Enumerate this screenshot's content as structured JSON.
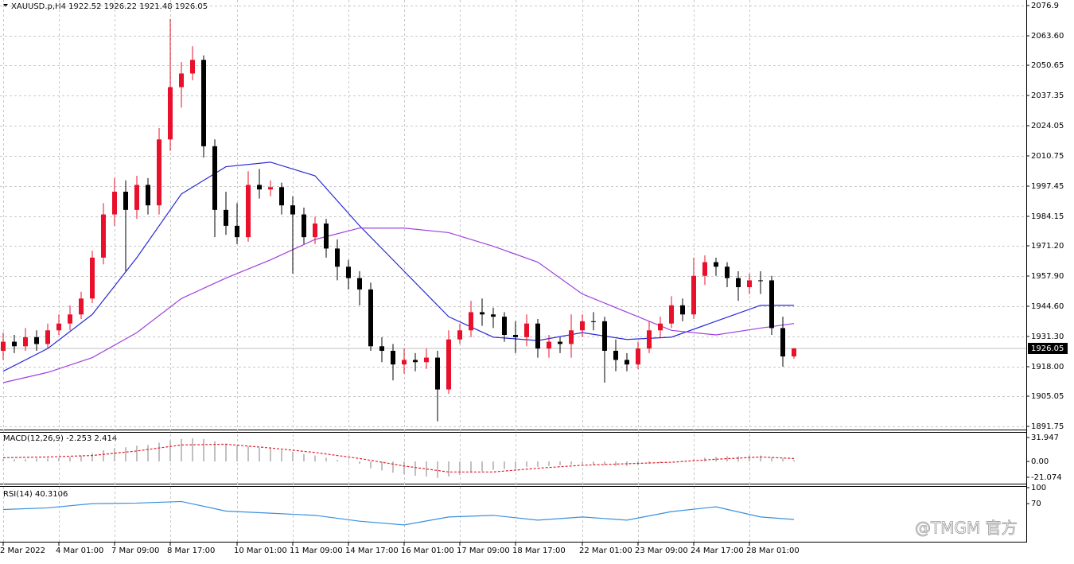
{
  "chart_data": [
    {
      "type": "candlestick",
      "title": "XAUUSD.p,H4  1922.52 1926.22 1921.48 1926.05",
      "categories": [
        "2 Mar 2022",
        null,
        null,
        null,
        null,
        "4 Mar 01:00",
        null,
        null,
        null,
        null,
        "7 Mar 09:00",
        null,
        null,
        null,
        null,
        "8 Mar 17:00",
        null,
        null,
        null,
        null,
        null,
        "10 Mar 01:00",
        null,
        null,
        null,
        null,
        "11 Mar 09:00",
        null,
        null,
        null,
        null,
        "14 Mar 17:00",
        null,
        null,
        null,
        null,
        "16 Mar 01:00",
        null,
        null,
        null,
        null,
        "17 Mar 09:00",
        null,
        null,
        null,
        null,
        "18 Mar 17:00",
        null,
        null,
        null,
        null,
        null,
        "22 Mar 01:00",
        null,
        null,
        null,
        null,
        "23 Mar 09:00",
        null,
        null,
        null,
        null,
        "24 Mar 17:00",
        null,
        null,
        null,
        null,
        "28 Mar 01:00",
        null,
        null,
        null,
        null
      ],
      "open": [
        1925,
        1929,
        1927,
        1931,
        1928,
        1934,
        1937,
        1941,
        1948,
        1966,
        1985,
        1995,
        1987,
        1998,
        1989,
        2018,
        2041,
        2047,
        2053,
        2015,
        1987,
        1980,
        1975,
        1998,
        1996,
        1997,
        1989,
        1985,
        1975,
        1981,
        1970,
        1962,
        1957,
        1952,
        1927,
        1925,
        1919,
        1921,
        1920,
        1922,
        1908,
        1930,
        1934,
        1942,
        1941,
        1940,
        1932,
        1931,
        1937,
        1926,
        1929,
        1928,
        1934,
        1938,
        1938,
        1925,
        1921,
        1919,
        1926,
        1934,
        1937,
        1945,
        1941,
        1958,
        1964,
        1962,
        1957,
        1953,
        1956,
        1956,
        1935,
        1922.52
      ],
      "high": [
        1933,
        1932,
        1935,
        1934,
        1937,
        1941,
        1945,
        1951,
        1969,
        1990,
        2001,
        2000,
        2002,
        2001,
        2023,
        2071,
        2052,
        2059,
        2055,
        2018,
        1995,
        1990,
        2004,
        2005,
        2000,
        1999,
        1993,
        1988,
        1984,
        1983,
        1974,
        1965,
        1960,
        1955,
        1931,
        1928,
        1926,
        1924,
        1926,
        1925,
        1934,
        1937,
        1947,
        1948,
        1944,
        1942,
        1938,
        1941,
        1939,
        1932,
        1931,
        1941,
        1941,
        1942,
        1940,
        1930,
        1924,
        1929,
        1938,
        1940,
        1949,
        1948,
        1966,
        1967,
        1966,
        1964,
        1960,
        1959,
        1960,
        1958,
        1940,
        1926.22
      ],
      "low": [
        1921,
        1924,
        1925,
        1925,
        1926,
        1932,
        1934,
        1939,
        1946,
        1963,
        1980,
        1960,
        1983,
        1985,
        1985,
        2013,
        2032,
        2044,
        2010,
        1975,
        1976,
        1972,
        1973,
        1992,
        1993,
        1985,
        1959,
        1972,
        1972,
        1966,
        1956,
        1952,
        1945,
        1925,
        1920,
        1912,
        1915,
        1916,
        1917,
        1894,
        1906,
        1928,
        1931,
        1936,
        1935,
        1929,
        1924,
        1927,
        1922,
        1922,
        1924,
        1922,
        1931,
        1934,
        1911,
        1916,
        1916,
        1917,
        1924,
        1931,
        1935,
        1938,
        1939,
        1954,
        1958,
        1953,
        1947,
        1950,
        1950,
        1932,
        1918,
        1921.48
      ],
      "close": [
        1929,
        1927,
        1931,
        1928,
        1934,
        1937,
        1941,
        1948,
        1966,
        1985,
        1995,
        1987,
        1998,
        1989,
        2018,
        2041,
        2047,
        2053,
        2015,
        1987,
        1980,
        1975,
        1998,
        1996,
        1997,
        1989,
        1985,
        1975,
        1981,
        1970,
        1962,
        1957,
        1952,
        1927,
        1925,
        1919,
        1921,
        1920,
        1922,
        1908,
        1930,
        1934,
        1942,
        1941,
        1940,
        1932,
        1931,
        1937,
        1926,
        1929,
        1928,
        1934,
        1938,
        1938,
        1925,
        1921,
        1919,
        1926,
        1934,
        1937,
        1945,
        1941,
        1958,
        1964,
        1962,
        1957,
        1953,
        1956,
        1956,
        1935,
        1922.52,
        1926.05
      ],
      "up_color": "#e8102a",
      "down_color": "#000000",
      "series": [
        {
          "color": "#2a2ad8",
          "x": [
            0,
            4,
            8,
            12,
            16,
            20,
            24,
            28,
            32,
            36,
            40,
            44,
            48,
            52,
            56,
            60,
            64,
            68,
            71
          ],
          "values": [
            1916,
            1926,
            1941,
            1966,
            1994,
            2006,
            2008,
            2002,
            1980,
            1960,
            1940,
            1931,
            1929.5,
            1933,
            1930,
            1931,
            1938,
            1945,
            1945
          ]
        },
        {
          "color": "#a040e0",
          "x": [
            0,
            4,
            8,
            12,
            16,
            20,
            24,
            28,
            32,
            36,
            40,
            44,
            48,
            52,
            56,
            60,
            64,
            68,
            71
          ],
          "values": [
            1911,
            1915.5,
            1922,
            1933,
            1948,
            1957,
            1965,
            1974,
            1979,
            1979,
            1977,
            1971,
            1964,
            1950,
            1942,
            1934,
            1932,
            1935,
            1937
          ]
        }
      ],
      "last_price": 1926.05,
      "ylim": [
        1890.35,
        2079.35
      ],
      "yticks": [
        2076.9,
        {
          "value": 2063.6,
          "label": "2063.60"
        },
        2050.65,
        2037.35,
        2024.05,
        2010.75,
        1997.45,
        1984.15,
        {
          "value": 1971.2,
          "label": "1971.20"
        },
        {
          "value": 1957.9,
          "label": "1957.90"
        },
        {
          "value": 1944.6,
          "label": "1944.60"
        },
        {
          "value": 1931.3,
          "label": "1931.30"
        },
        {
          "value": 1918,
          "label": "1918.00"
        },
        1905.05,
        1891.75
      ],
      "grid": true
    },
    {
      "type": "macd",
      "title": "MACD(12,26,9) -2.253 2.414",
      "values": [
        3,
        3,
        3,
        4,
        4,
        5,
        6,
        8,
        11,
        15,
        18,
        19,
        21,
        22,
        25,
        28,
        30,
        31,
        30,
        27,
        24,
        21,
        20,
        18,
        17,
        15,
        13,
        10,
        8,
        5,
        2,
        -1,
        -3,
        -9,
        -12,
        -15,
        -17,
        -19,
        -20,
        -22,
        -20,
        -18,
        -15,
        -13,
        -11,
        -10,
        -9,
        -7,
        -7,
        -6,
        -5,
        -4,
        -3,
        -4,
        -5,
        -6,
        -6,
        -5,
        -3,
        -2,
        0,
        1,
        3,
        5,
        6,
        7,
        7,
        8,
        8,
        5,
        4,
        2
      ],
      "color": "#c0c0c0",
      "series": [
        {
          "color": "#e0202c",
          "x": [
            0,
            4,
            8,
            12,
            16,
            20,
            24,
            28,
            32,
            36,
            40,
            44,
            48,
            52,
            56,
            60,
            64,
            68,
            71
          ],
          "values": [
            5,
            6,
            8,
            14,
            22,
            23,
            18,
            12,
            4,
            -6,
            -14,
            -14,
            -9,
            -5,
            -3,
            -1,
            3,
            6,
            4
          ]
        }
      ],
      "ylim": [
        -29.56,
        38.31
      ],
      "yticks": [
        31.947,
        {
          "value": 0,
          "label": "0.00"
        },
        -21.074
      ]
    },
    {
      "type": "line",
      "title": "RSI(14) 40.3106",
      "x": [
        0,
        4,
        8,
        12,
        16,
        20,
        24,
        28,
        32,
        36,
        40,
        44,
        48,
        52,
        56,
        60,
        64,
        68,
        71
      ],
      "values": [
        59,
        62,
        70,
        71,
        74,
        56,
        52,
        48,
        37,
        30,
        45,
        48,
        39,
        45,
        39,
        55,
        64,
        45,
        40.31
      ],
      "color": "#3a90e0",
      "ylim": [
        0,
        100
      ],
      "yticks": [
        100,
        70
      ]
    }
  ],
  "watermark": "@TMGM 官方"
}
